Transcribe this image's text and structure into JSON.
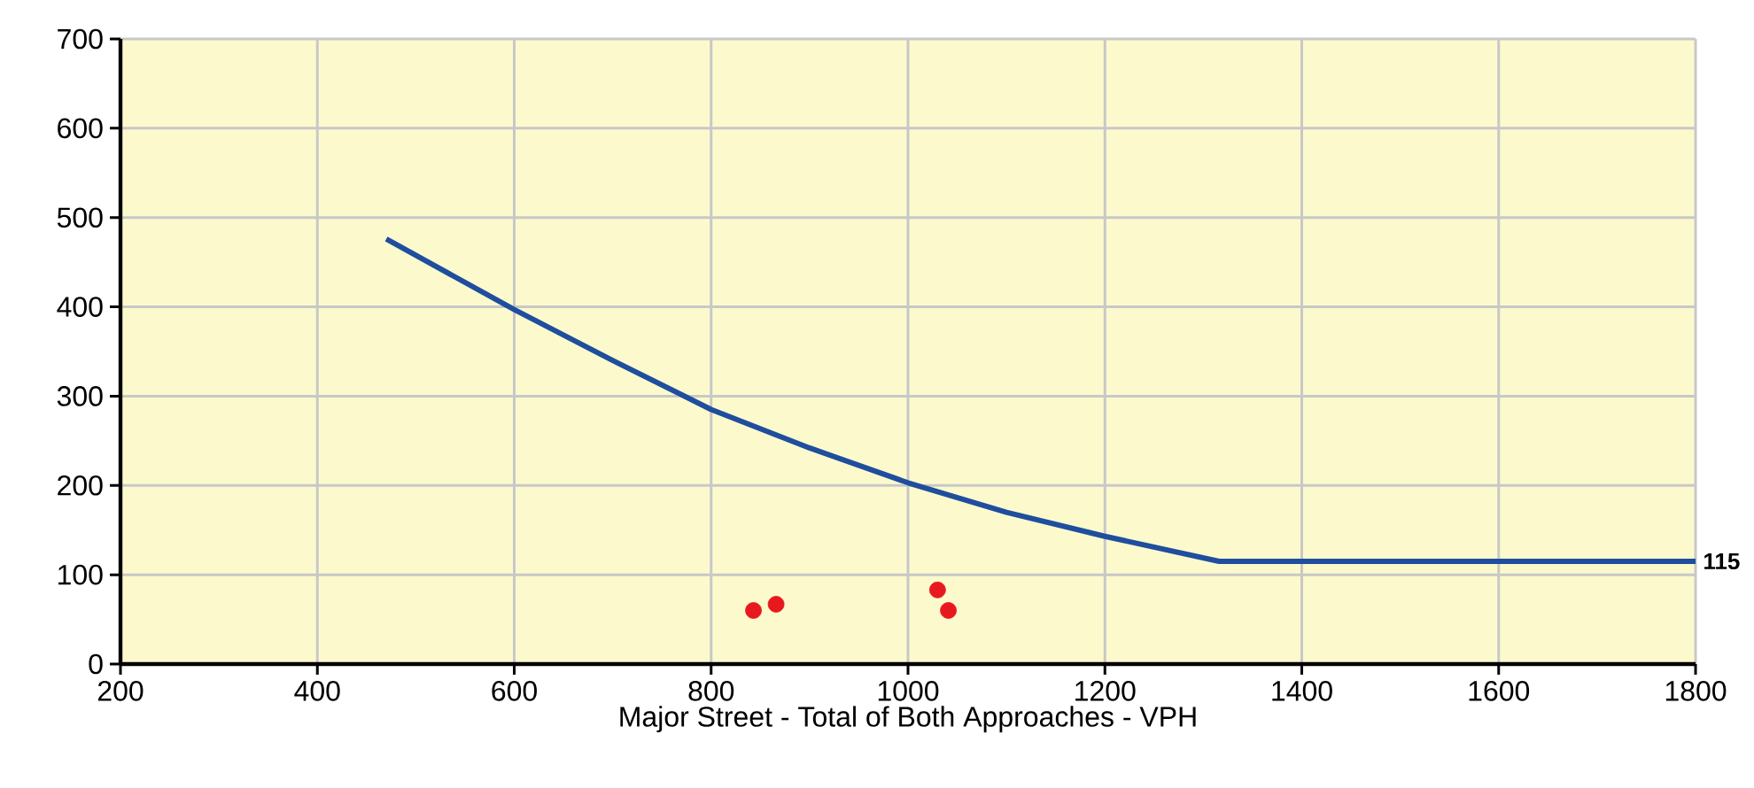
{
  "chart_data": {
    "type": "line",
    "xlabel": "Major Street - Total of Both Approaches - VPH",
    "xlim": [
      200,
      1800
    ],
    "ylim": [
      0,
      700
    ],
    "xticks": [
      200,
      400,
      600,
      800,
      1000,
      1200,
      1400,
      1600,
      1800
    ],
    "yticks": [
      0,
      100,
      200,
      300,
      400,
      500,
      600,
      700
    ],
    "grid": true,
    "series": [
      {
        "color": "#1f4e9e",
        "x": [
          470,
          600,
          700,
          800,
          900,
          1000,
          1100,
          1200,
          1316,
          1800
        ],
        "values": [
          476,
          397,
          340,
          285,
          242,
          203,
          170,
          143,
          115,
          115
        ]
      },
      {
        "type": "scatter",
        "color": "#e8191e",
        "marker": "circle",
        "x": [
          843,
          866,
          1030,
          1041
        ],
        "values": [
          60,
          67,
          83,
          60
        ]
      }
    ],
    "annotations": [
      {
        "text": "115",
        "x": 1800,
        "y": 115
      }
    ]
  }
}
